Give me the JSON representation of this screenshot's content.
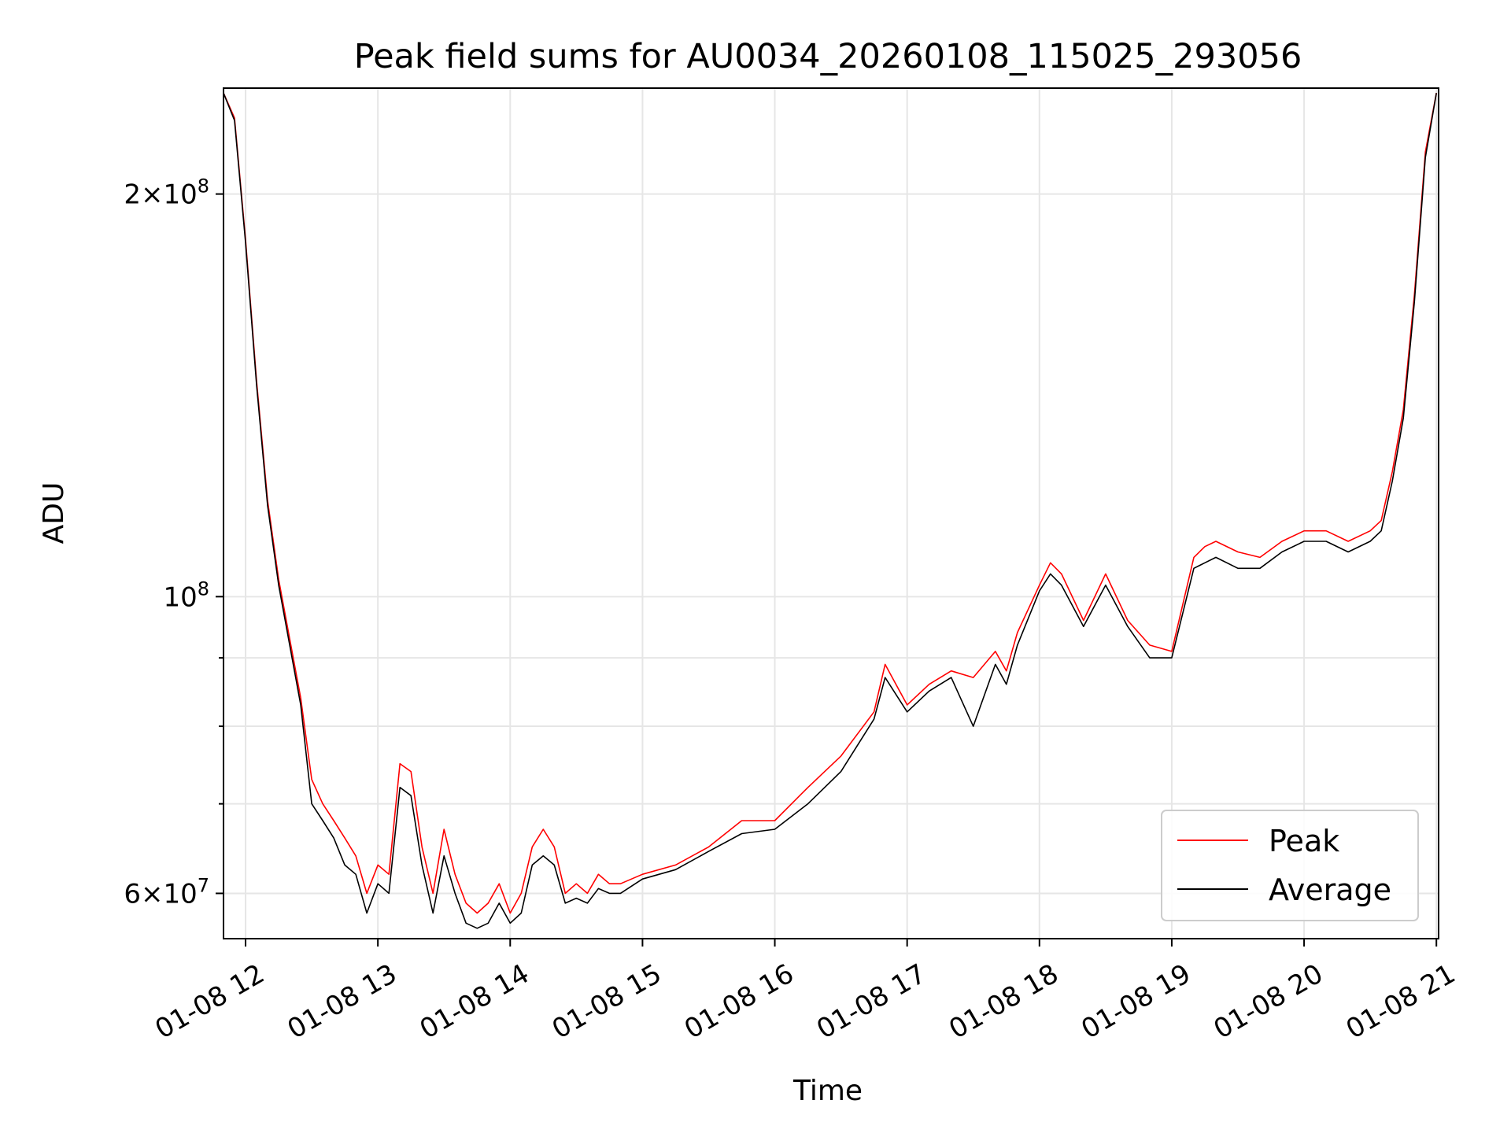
{
  "chart_data": {
    "type": "line",
    "title": "Peak field sums for AU0034_20260108_115025_293056",
    "xlabel": "Time",
    "ylabel": "ADU",
    "yscale": "log",
    "xlim": [
      "01-08 11:50",
      "01-08 21:01"
    ],
    "ylim": [
      55500000,
      240000000
    ],
    "grid": true,
    "legend_position": "lower-right",
    "x_ticks": [
      "01-08 12",
      "01-08 13",
      "01-08 14",
      "01-08 15",
      "01-08 16",
      "01-08 17",
      "01-08 18",
      "01-08 19",
      "01-08 20",
      "01-08 21"
    ],
    "y_ticks": [
      {
        "value": 60000000,
        "base": "6",
        "exp": "7",
        "sci": true
      },
      {
        "value": 100000000,
        "base": "10",
        "exp": "8",
        "sci": false
      },
      {
        "value": 200000000,
        "base": "2",
        "exp": "8",
        "sci": true
      }
    ],
    "y_minor_ticks": [
      70000000,
      80000000,
      90000000
    ],
    "series": [
      {
        "name": "Peak",
        "color": "#ff0000",
        "x": [
          "01-08 11:50",
          "01-08 11:55",
          "01-08 12:00",
          "01-08 12:05",
          "01-08 12:10",
          "01-08 12:15",
          "01-08 12:20",
          "01-08 12:25",
          "01-08 12:30",
          "01-08 12:35",
          "01-08 12:40",
          "01-08 12:45",
          "01-08 12:50",
          "01-08 12:55",
          "01-08 13:00",
          "01-08 13:05",
          "01-08 13:10",
          "01-08 13:15",
          "01-08 13:20",
          "01-08 13:25",
          "01-08 13:30",
          "01-08 13:35",
          "01-08 13:40",
          "01-08 13:45",
          "01-08 13:50",
          "01-08 13:55",
          "01-08 14:00",
          "01-08 14:05",
          "01-08 14:10",
          "01-08 14:15",
          "01-08 14:20",
          "01-08 14:25",
          "01-08 14:30",
          "01-08 14:35",
          "01-08 14:40",
          "01-08 14:45",
          "01-08 14:50",
          "01-08 15:00",
          "01-08 15:15",
          "01-08 15:30",
          "01-08 15:45",
          "01-08 16:00",
          "01-08 16:15",
          "01-08 16:30",
          "01-08 16:45",
          "01-08 16:50",
          "01-08 17:00",
          "01-08 17:10",
          "01-08 17:20",
          "01-08 17:30",
          "01-08 17:40",
          "01-08 17:45",
          "01-08 17:50",
          "01-08 18:00",
          "01-08 18:05",
          "01-08 18:10",
          "01-08 18:20",
          "01-08 18:30",
          "01-08 18:40",
          "01-08 18:50",
          "01-08 19:00",
          "01-08 19:10",
          "01-08 19:15",
          "01-08 19:20",
          "01-08 19:30",
          "01-08 19:40",
          "01-08 19:50",
          "01-08 20:00",
          "01-08 20:10",
          "01-08 20:20",
          "01-08 20:30",
          "01-08 20:35",
          "01-08 20:40",
          "01-08 20:45",
          "01-08 20:50",
          "01-08 20:55",
          "01-08 21:00"
        ],
        "y": [
          238000000,
          228000000,
          185000000,
          145000000,
          118000000,
          103000000,
          93000000,
          84000000,
          73000000,
          70000000,
          68000000,
          66000000,
          64000000,
          60000000,
          63000000,
          62000000,
          75000000,
          74000000,
          65000000,
          60000000,
          67000000,
          62000000,
          59000000,
          58000000,
          59000000,
          61000000,
          58000000,
          60000000,
          65000000,
          67000000,
          65000000,
          60000000,
          61000000,
          60000000,
          62000000,
          61000000,
          61000000,
          62000000,
          63000000,
          65000000,
          68000000,
          68000000,
          72000000,
          76000000,
          82000000,
          89000000,
          83000000,
          86000000,
          88000000,
          87000000,
          91000000,
          88000000,
          94000000,
          102000000,
          106000000,
          104000000,
          96000000,
          104000000,
          96000000,
          92000000,
          91000000,
          107000000,
          109000000,
          110000000,
          108000000,
          107000000,
          110000000,
          112000000,
          112000000,
          110000000,
          112000000,
          114000000,
          124000000,
          138000000,
          168000000,
          215000000,
          238000000
        ]
      },
      {
        "name": "Average",
        "color": "#000000",
        "x": [
          "01-08 11:50",
          "01-08 11:55",
          "01-08 12:00",
          "01-08 12:05",
          "01-08 12:10",
          "01-08 12:15",
          "01-08 12:20",
          "01-08 12:25",
          "01-08 12:30",
          "01-08 12:35",
          "01-08 12:40",
          "01-08 12:45",
          "01-08 12:50",
          "01-08 12:55",
          "01-08 13:00",
          "01-08 13:05",
          "01-08 13:10",
          "01-08 13:15",
          "01-08 13:20",
          "01-08 13:25",
          "01-08 13:30",
          "01-08 13:35",
          "01-08 13:40",
          "01-08 13:45",
          "01-08 13:50",
          "01-08 13:55",
          "01-08 14:00",
          "01-08 14:05",
          "01-08 14:10",
          "01-08 14:15",
          "01-08 14:20",
          "01-08 14:25",
          "01-08 14:30",
          "01-08 14:35",
          "01-08 14:40",
          "01-08 14:45",
          "01-08 14:50",
          "01-08 15:00",
          "01-08 15:15",
          "01-08 15:30",
          "01-08 15:45",
          "01-08 16:00",
          "01-08 16:15",
          "01-08 16:30",
          "01-08 16:45",
          "01-08 16:50",
          "01-08 17:00",
          "01-08 17:10",
          "01-08 17:20",
          "01-08 17:30",
          "01-08 17:40",
          "01-08 17:45",
          "01-08 17:50",
          "01-08 18:00",
          "01-08 18:05",
          "01-08 18:10",
          "01-08 18:20",
          "01-08 18:30",
          "01-08 18:40",
          "01-08 18:50",
          "01-08 19:00",
          "01-08 19:10",
          "01-08 19:15",
          "01-08 19:20",
          "01-08 19:30",
          "01-08 19:40",
          "01-08 19:50",
          "01-08 20:00",
          "01-08 20:10",
          "01-08 20:20",
          "01-08 20:30",
          "01-08 20:35",
          "01-08 20:40",
          "01-08 20:45",
          "01-08 20:50",
          "01-08 20:55",
          "01-08 21:00"
        ],
        "y": [
          238000000,
          227000000,
          184000000,
          144000000,
          117000000,
          102000000,
          92000000,
          83000000,
          70000000,
          68000000,
          66000000,
          63000000,
          62000000,
          58000000,
          61000000,
          60000000,
          72000000,
          71000000,
          63000000,
          58000000,
          64000000,
          60000000,
          57000000,
          56500000,
          57000000,
          59000000,
          57000000,
          58000000,
          63000000,
          64000000,
          63000000,
          59000000,
          59500000,
          59000000,
          60500000,
          60000000,
          60000000,
          61500000,
          62500000,
          64500000,
          66500000,
          67000000,
          70000000,
          74000000,
          81000000,
          87000000,
          82000000,
          85000000,
          87000000,
          80000000,
          89000000,
          86000000,
          92000000,
          101000000,
          104000000,
          102000000,
          95000000,
          102000000,
          95000000,
          90000000,
          90000000,
          105000000,
          106000000,
          107000000,
          105000000,
          105000000,
          108000000,
          110000000,
          110000000,
          108000000,
          110000000,
          112000000,
          122000000,
          136000000,
          166000000,
          213000000,
          238000000
        ]
      }
    ]
  }
}
